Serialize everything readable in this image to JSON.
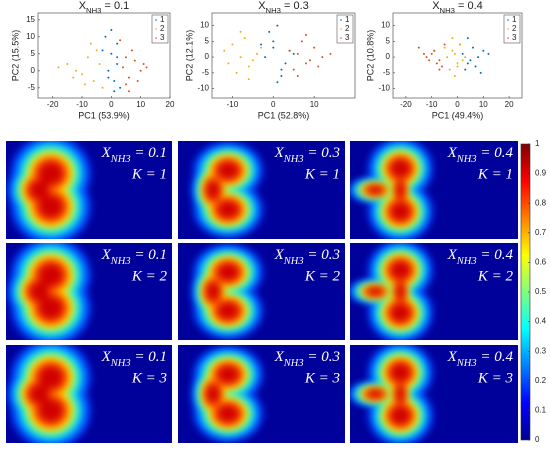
{
  "chart_data": [
    {
      "type": "scatter",
      "title": {
        "symbol": "X",
        "subscript": "NH3",
        "value": "= 0.1"
      },
      "x_label": "PC1 (53.9%)",
      "y_label": "PC2 (15.5%)",
      "xlim": [
        -25,
        20
      ],
      "ylim": [
        -8,
        17
      ],
      "xticks": [
        -20,
        -10,
        0,
        10,
        20
      ],
      "yticks": [
        -5,
        0,
        5,
        10,
        15
      ],
      "legend": "upper right",
      "series": [
        {
          "name": "1",
          "color": "#0072bd",
          "x": [
            -2,
            0,
            1,
            2,
            -1,
            3,
            0,
            2,
            -3,
            1,
            -1,
            2
          ],
          "values": [
            10,
            5,
            -3,
            8,
            0,
            -5,
            12,
            2,
            6,
            -6,
            -2,
            4
          ]
        },
        {
          "name": "2",
          "color": "#edb120",
          "x": [
            -15,
            -10,
            -8,
            -12,
            -6,
            -5,
            -18,
            -9,
            -4,
            -7,
            -13,
            -3
          ],
          "values": [
            2,
            -1,
            4,
            0,
            -3,
            6,
            1,
            -4,
            2,
            8,
            -2,
            -5
          ]
        },
        {
          "name": "3",
          "color": "#d95319",
          "x": [
            4,
            6,
            8,
            10,
            5,
            12,
            7,
            9,
            3,
            6,
            11,
            5
          ],
          "values": [
            1,
            -2,
            3,
            0,
            -4,
            1,
            6,
            -3,
            9,
            -6,
            2,
            4
          ]
        }
      ]
    },
    {
      "type": "scatter",
      "title": {
        "symbol": "X",
        "subscript": "NH3",
        "value": "= 0.3"
      },
      "x_label": "PC1 (52.8%)",
      "y_label": "PC2 (12.1%)",
      "xlim": [
        -15,
        20
      ],
      "ylim": [
        -13,
        14
      ],
      "xticks": [
        -10,
        0,
        10
      ],
      "yticks": [
        -10,
        -5,
        0,
        5,
        10
      ],
      "legend": "upper right",
      "series": [
        {
          "name": "1",
          "color": "#0072bd",
          "x": [
            -2,
            0,
            2,
            4,
            1,
            -1,
            3,
            0,
            5,
            2,
            -3,
            1
          ],
          "values": [
            0,
            5,
            -4,
            2,
            -8,
            8,
            -2,
            3,
            1,
            -6,
            4,
            10
          ]
        },
        {
          "name": "2",
          "color": "#edb120",
          "x": [
            -12,
            -8,
            -6,
            -10,
            -4,
            -7,
            -9,
            -5,
            -11,
            -3,
            -6,
            -8
          ],
          "values": [
            2,
            0,
            -3,
            4,
            1,
            6,
            -5,
            -1,
            -2,
            3,
            -7,
            8
          ]
        },
        {
          "name": "3",
          "color": "#d95319",
          "x": [
            6,
            8,
            10,
            5,
            12,
            7,
            9,
            4,
            11,
            6,
            14,
            8
          ],
          "values": [
            1,
            -2,
            3,
            -4,
            0,
            5,
            -1,
            2,
            -3,
            -6,
            1,
            7
          ]
        }
      ]
    },
    {
      "type": "scatter",
      "title": {
        "symbol": "X",
        "subscript": "NH3",
        "value": "= 0.4"
      },
      "x_label": "PC1 (49.4%)",
      "y_label": "PC2 (10.8%)",
      "xlim": [
        -25,
        25
      ],
      "ylim": [
        -13,
        14
      ],
      "xticks": [
        -20,
        -10,
        0,
        10,
        20
      ],
      "yticks": [
        -10,
        -5,
        0,
        5,
        10
      ],
      "legend": "upper right",
      "series": [
        {
          "name": "1",
          "color": "#0072bd",
          "x": [
            2,
            4,
            6,
            8,
            3,
            10,
            5,
            1,
            7,
            12,
            4,
            9
          ],
          "values": [
            1,
            -2,
            3,
            0,
            -4,
            2,
            -1,
            4,
            -3,
            1,
            6,
            -5
          ]
        },
        {
          "name": "2",
          "color": "#edb120",
          "x": [
            -4,
            -2,
            0,
            1,
            -3,
            -1,
            2,
            -5,
            0,
            -2,
            3,
            -1
          ],
          "values": [
            0,
            2,
            -2,
            4,
            -4,
            1,
            -1,
            3,
            -3,
            6,
            0,
            -6
          ]
        },
        {
          "name": "3",
          "color": "#d95319",
          "x": [
            -12,
            -9,
            -7,
            -10,
            -6,
            -15,
            -8,
            -5,
            -11,
            -7,
            -13,
            -9
          ],
          "values": [
            0,
            2,
            -1,
            1,
            -3,
            3,
            -2,
            4,
            -1,
            -4,
            1,
            2
          ]
        }
      ]
    }
  ],
  "heatmap_grid": {
    "clim": [
      0,
      1
    ],
    "cticks": [
      0,
      0.1,
      0.2,
      0.3,
      0.4,
      0.5,
      0.6,
      0.7,
      0.8,
      0.9,
      1
    ],
    "panels": [
      [
        {
          "x_label": {
            "symbol": "X",
            "subscript": "NH3",
            "value": "= 0.1"
          },
          "k_label": "K = 1"
        },
        {
          "x_label": {
            "symbol": "X",
            "subscript": "NH3",
            "value": "= 0.3"
          },
          "k_label": "K = 1"
        },
        {
          "x_label": {
            "symbol": "X",
            "subscript": "NH3",
            "value": "= 0.4"
          },
          "k_label": "K = 1"
        }
      ],
      [
        {
          "x_label": {
            "symbol": "X",
            "subscript": "NH3",
            "value": "= 0.1"
          },
          "k_label": "K = 2"
        },
        {
          "x_label": {
            "symbol": "X",
            "subscript": "NH3",
            "value": "= 0.3"
          },
          "k_label": "K = 2"
        },
        {
          "x_label": {
            "symbol": "X",
            "subscript": "NH3",
            "value": "= 0.4"
          },
          "k_label": "K = 2"
        }
      ],
      [
        {
          "x_label": {
            "symbol": "X",
            "subscript": "NH3",
            "value": "= 0.1"
          },
          "k_label": "K = 3"
        },
        {
          "x_label": {
            "symbol": "X",
            "subscript": "NH3",
            "value": "= 0.3"
          },
          "k_label": "K = 3"
        },
        {
          "x_label": {
            "symbol": "X",
            "subscript": "NH3",
            "value": "= 0.4"
          },
          "k_label": "K = 3"
        }
      ]
    ]
  }
}
